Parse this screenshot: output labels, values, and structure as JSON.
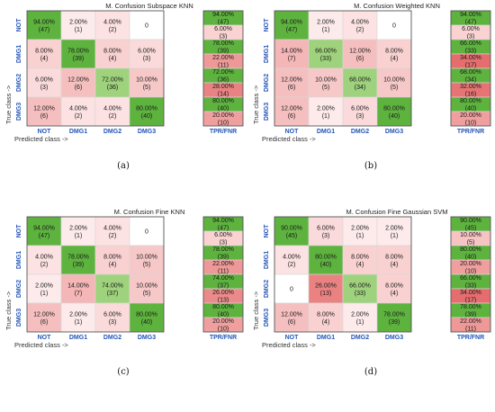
{
  "chart_data": [
    {
      "type": "heatmap",
      "title": "M. Confusion Subspace KNN",
      "caption": "(a)",
      "xlabel": "Predicted class ->",
      "ylabel": "True class ->",
      "classes": [
        "NOT",
        "DMG1",
        "DMG2",
        "DMG3"
      ],
      "summary_label": "TPR/FNR",
      "matrix_pct": [
        [
          "94.00%",
          "2.00%",
          "4.00%",
          "0"
        ],
        [
          "8.00%",
          "78.00%",
          "8.00%",
          "6.00%"
        ],
        [
          "6.00%",
          "12.00%",
          "72.00%",
          "10.00%"
        ],
        [
          "12.00%",
          "4.00%",
          "4.00%",
          "80.00%"
        ]
      ],
      "matrix_count": [
        [
          "(47)",
          "(1)",
          "(2)",
          ""
        ],
        [
          "(4)",
          "(39)",
          "(4)",
          "(3)"
        ],
        [
          "(3)",
          "(6)",
          "(36)",
          "(5)"
        ],
        [
          "(6)",
          "(2)",
          "(2)",
          "(40)"
        ]
      ],
      "tpr_pct": [
        "94.00%",
        "78.00%",
        "72.00%",
        "80.00%"
      ],
      "tpr_count": [
        "(47)",
        "(39)",
        "(36)",
        "(40)"
      ],
      "fnr_pct": [
        "6.00%",
        "22.00%",
        "28.00%",
        "20.00%"
      ],
      "fnr_count": [
        "(3)",
        "(11)",
        "(14)",
        "(10)"
      ]
    },
    {
      "type": "heatmap",
      "title": "M. Confusion Weighted KNN",
      "caption": "(b)",
      "xlabel": "Predicted class ->",
      "ylabel": "True class ->",
      "classes": [
        "NOT",
        "DMG1",
        "DMG2",
        "DMG3"
      ],
      "summary_label": "TPR/FNR",
      "matrix_pct": [
        [
          "94.00%",
          "2.00%",
          "4.00%",
          "0"
        ],
        [
          "14.00%",
          "66.00%",
          "12.00%",
          "8.00%"
        ],
        [
          "12.00%",
          "10.00%",
          "68.00%",
          "10.00%"
        ],
        [
          "12.00%",
          "2.00%",
          "6.00%",
          "80.00%"
        ]
      ],
      "matrix_count": [
        [
          "(47)",
          "(1)",
          "(2)",
          ""
        ],
        [
          "(7)",
          "(33)",
          "(6)",
          "(4)"
        ],
        [
          "(6)",
          "(5)",
          "(34)",
          "(5)"
        ],
        [
          "(6)",
          "(1)",
          "(3)",
          "(40)"
        ]
      ],
      "tpr_pct": [
        "94.00%",
        "66.00%",
        "68.00%",
        "80.00%"
      ],
      "tpr_count": [
        "(47)",
        "(33)",
        "(34)",
        "(40)"
      ],
      "fnr_pct": [
        "6.00%",
        "34.00%",
        "32.00%",
        "20.00%"
      ],
      "fnr_count": [
        "(3)",
        "(17)",
        "(16)",
        "(10)"
      ]
    },
    {
      "type": "heatmap",
      "title": "M. Confusion Fine KNN",
      "caption": "(c)",
      "xlabel": "Predicted class ->",
      "ylabel": "True class ->",
      "classes": [
        "NOT",
        "DMG1",
        "DMG2",
        "DMG3"
      ],
      "summary_label": "TPR/FNR",
      "matrix_pct": [
        [
          "94.00%",
          "2.00%",
          "4.00%",
          "0"
        ],
        [
          "4.00%",
          "78.00%",
          "8.00%",
          "10.00%"
        ],
        [
          "2.00%",
          "14.00%",
          "74.00%",
          "10.00%"
        ],
        [
          "12.00%",
          "2.00%",
          "6.00%",
          "80.00%"
        ]
      ],
      "matrix_count": [
        [
          "(47)",
          "(1)",
          "(2)",
          ""
        ],
        [
          "(2)",
          "(39)",
          "(4)",
          "(5)"
        ],
        [
          "(1)",
          "(7)",
          "(37)",
          "(5)"
        ],
        [
          "(6)",
          "(1)",
          "(3)",
          "(40)"
        ]
      ],
      "tpr_pct": [
        "94.00%",
        "78.00%",
        "74.00%",
        "80.00%"
      ],
      "tpr_count": [
        "(47)",
        "(39)",
        "(37)",
        "(40)"
      ],
      "fnr_pct": [
        "6.00%",
        "22.00%",
        "26.00%",
        "20.00%"
      ],
      "fnr_count": [
        "(3)",
        "(11)",
        "(13)",
        "(10)"
      ]
    },
    {
      "type": "heatmap",
      "title": "M. Confusion Fine Gaussian SVM",
      "caption": "(d)",
      "xlabel": "Predicted class ->",
      "ylabel": "True class ->",
      "classes": [
        "NOT",
        "DMG1",
        "DMG2",
        "DMG3"
      ],
      "summary_label": "TPR/FNR",
      "matrix_pct": [
        [
          "90.00%",
          "6.00%",
          "2.00%",
          "2.00%"
        ],
        [
          "4.00%",
          "80.00%",
          "8.00%",
          "8.00%"
        ],
        [
          "0",
          "26.00%",
          "66.00%",
          "8.00%"
        ],
        [
          "12.00%",
          "8.00%",
          "2.00%",
          "78.00%"
        ]
      ],
      "matrix_count": [
        [
          "(45)",
          "(3)",
          "(1)",
          "(1)"
        ],
        [
          "(2)",
          "(40)",
          "(4)",
          "(4)"
        ],
        [
          "",
          "(13)",
          "(33)",
          "(4)"
        ],
        [
          "(6)",
          "(4)",
          "(1)",
          "(39)"
        ]
      ],
      "tpr_pct": [
        "90.00%",
        "80.00%",
        "66.00%",
        "78.00%"
      ],
      "tpr_count": [
        "(45)",
        "(40)",
        "(33)",
        "(39)"
      ],
      "fnr_pct": [
        "10.00%",
        "20.00%",
        "34.00%",
        "22.00%"
      ],
      "fnr_count": [
        "(5)",
        "(10)",
        "(17)",
        "(11)"
      ]
    }
  ]
}
